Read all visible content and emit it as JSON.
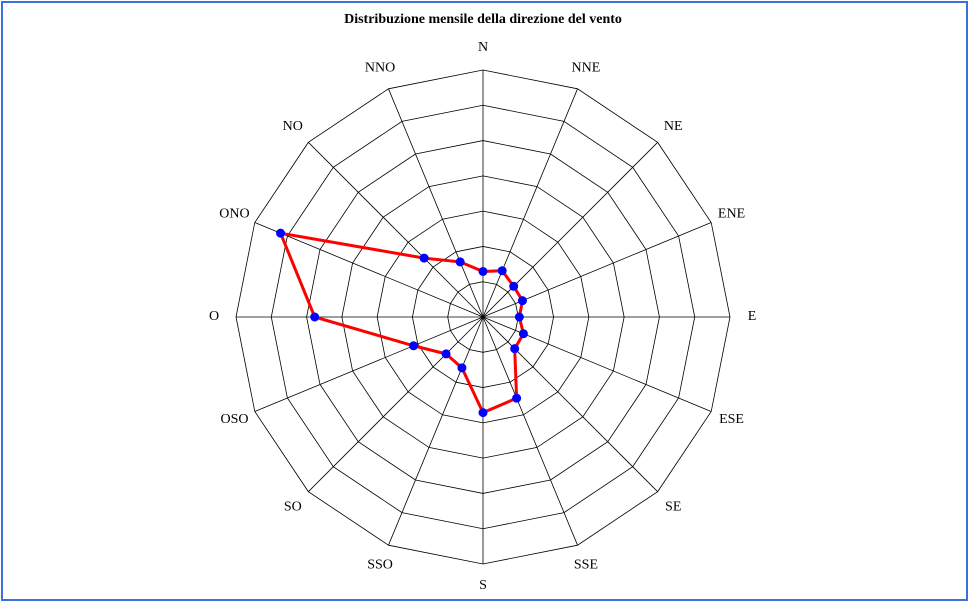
{
  "chart_data": {
    "type": "radar",
    "title": "Distribuzione mensile della direzione del vento",
    "categories": [
      "N",
      "NNE",
      "NE",
      "ENE",
      "E",
      "ESE",
      "SE",
      "SSE",
      "S",
      "SSO",
      "SO",
      "OSO",
      "O",
      "ONO",
      "NO",
      "NNO"
    ],
    "values": [
      1.29,
      1.42,
      1.23,
      1.21,
      1.03,
      1.24,
      1.27,
      2.49,
      2.71,
      1.56,
      1.48,
      2.13,
      4.77,
      6.21,
      2.36,
      1.69
    ],
    "color": "#ff0000",
    "marker_color": "#0000ff",
    "ylim": [
      0,
      7
    ],
    "yticks": [
      1,
      2,
      3,
      4,
      5,
      6,
      7
    ],
    "grid": true
  }
}
